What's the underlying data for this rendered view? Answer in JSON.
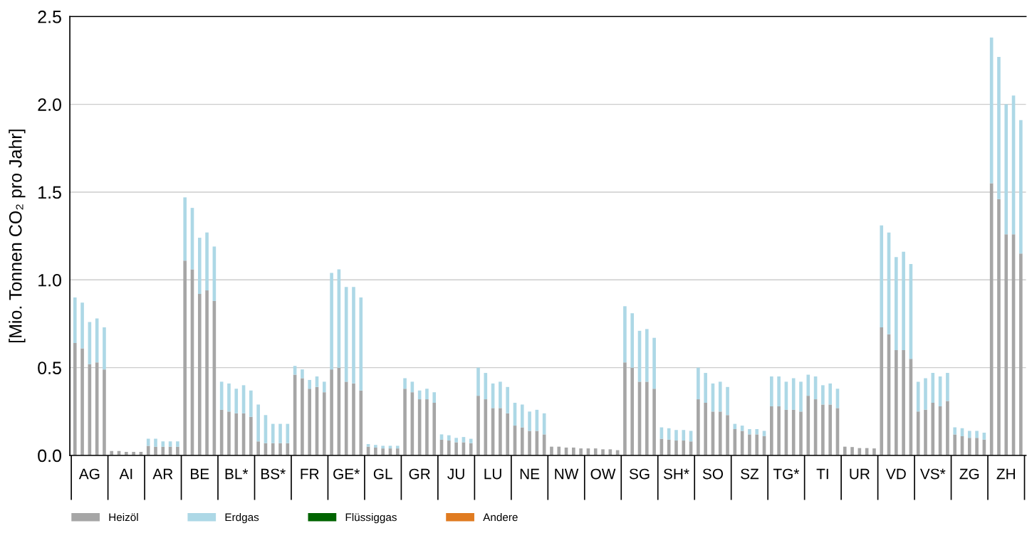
{
  "chart_data": {
    "type": "bar",
    "stacked": true,
    "ylabel": "[Mio. Tonnen CO₂ pro Jahr]",
    "categories": [
      null,
      null,
      "AG",
      null,
      null,
      null,
      null,
      "AI",
      null,
      null,
      null,
      null,
      "AR",
      null,
      null,
      null,
      null,
      "BE",
      null,
      null,
      null,
      null,
      "BL*",
      null,
      null,
      null,
      null,
      "BS*",
      null,
      null,
      null,
      null,
      "FR",
      null,
      null,
      null,
      null,
      "GE*",
      null,
      null,
      null,
      null,
      "GL",
      null,
      null,
      null,
      null,
      "GR",
      null,
      null,
      null,
      null,
      "JU",
      null,
      null,
      null,
      null,
      "LU",
      null,
      null,
      null,
      null,
      "NE",
      null,
      null,
      null,
      null,
      "NW",
      null,
      null,
      null,
      null,
      "OW",
      null,
      null,
      null,
      null,
      "SG",
      null,
      null,
      null,
      null,
      "SH*",
      null,
      null,
      null,
      null,
      "SO",
      null,
      null,
      null,
      null,
      "SZ",
      null,
      null,
      null,
      null,
      "TG*",
      null,
      null,
      null,
      null,
      "TI",
      null,
      null,
      null,
      null,
      "UR",
      null,
      null,
      null,
      null,
      "VD",
      null,
      null,
      null,
      null,
      "VS*",
      null,
      null,
      null,
      null,
      "ZG",
      null,
      null,
      null,
      null,
      "ZH",
      null,
      null
    ],
    "series": [
      {
        "name": "Heizöl",
        "color": "#a6a6a6",
        "values": [
          0.64,
          0.61,
          0.52,
          0.53,
          0.49,
          0.025,
          0.025,
          0.02,
          0.02,
          0.02,
          0.055,
          0.05,
          0.05,
          0.05,
          0.05,
          1.11,
          1.06,
          0.92,
          0.94,
          0.88,
          0.26,
          0.25,
          0.24,
          0.24,
          0.22,
          0.08,
          0.07,
          0.07,
          0.07,
          0.07,
          0.46,
          0.44,
          0.38,
          0.39,
          0.36,
          0.49,
          0.5,
          0.42,
          0.41,
          0.37,
          0.05,
          0.045,
          0.04,
          0.04,
          0.04,
          0.38,
          0.36,
          0.32,
          0.32,
          0.3,
          0.09,
          0.085,
          0.075,
          0.075,
          0.07,
          0.34,
          0.32,
          0.27,
          0.27,
          0.24,
          0.17,
          0.16,
          0.14,
          0.14,
          0.12,
          0.05,
          0.05,
          0.045,
          0.045,
          0.04,
          0.04,
          0.04,
          0.035,
          0.035,
          0.03,
          0.53,
          0.5,
          0.42,
          0.42,
          0.38,
          0.095,
          0.09,
          0.085,
          0.085,
          0.08,
          0.32,
          0.3,
          0.25,
          0.25,
          0.23,
          0.15,
          0.14,
          0.12,
          0.12,
          0.11,
          0.28,
          0.28,
          0.26,
          0.26,
          0.25,
          0.34,
          0.32,
          0.29,
          0.29,
          0.27,
          0.05,
          0.048,
          0.042,
          0.042,
          0.04,
          0.73,
          0.69,
          0.6,
          0.6,
          0.55,
          0.25,
          0.26,
          0.3,
          0.28,
          0.31,
          0.12,
          0.11,
          0.1,
          0.1,
          0.09,
          1.55,
          1.46,
          1.26,
          1.26,
          1.15
        ]
      },
      {
        "name": "Erdgas",
        "color": "#add8e6",
        "values": [
          0.26,
          0.26,
          0.24,
          0.25,
          0.24,
          0,
          0,
          0,
          0,
          0,
          0.04,
          0.045,
          0.03,
          0.03,
          0.03,
          0.36,
          0.35,
          0.32,
          0.33,
          0.31,
          0.16,
          0.16,
          0.14,
          0.16,
          0.15,
          0.21,
          0.16,
          0.11,
          0.11,
          0.11,
          0.05,
          0.05,
          0.05,
          0.06,
          0.06,
          0.55,
          0.56,
          0.54,
          0.55,
          0.53,
          0.015,
          0.015,
          0.015,
          0.015,
          0.015,
          0.06,
          0.06,
          0.05,
          0.06,
          0.06,
          0.03,
          0.03,
          0.025,
          0.03,
          0.025,
          0.16,
          0.15,
          0.14,
          0.15,
          0.15,
          0.13,
          0.13,
          0.11,
          0.12,
          0.12,
          0,
          0,
          0,
          0,
          0,
          0,
          0,
          0,
          0,
          0,
          0.32,
          0.31,
          0.29,
          0.3,
          0.29,
          0.065,
          0.065,
          0.06,
          0.06,
          0.06,
          0.18,
          0.17,
          0.16,
          0.17,
          0.16,
          0.03,
          0.03,
          0.03,
          0.03,
          0.03,
          0.17,
          0.17,
          0.16,
          0.18,
          0.17,
          0.12,
          0.13,
          0.11,
          0.12,
          0.11,
          0,
          0,
          0,
          0,
          0,
          0.58,
          0.58,
          0.53,
          0.56,
          0.54,
          0.17,
          0.18,
          0.17,
          0.17,
          0.16,
          0.04,
          0.045,
          0.04,
          0.04,
          0.04,
          0.83,
          0.81,
          0.74,
          0.79,
          0.76
        ]
      },
      {
        "name": "Flüssiggas",
        "color": "#006400",
        "values": [
          0,
          0,
          0,
          0,
          0,
          0,
          0,
          0,
          0,
          0,
          0,
          0,
          0,
          0,
          0,
          0,
          0,
          0,
          0,
          0,
          0,
          0,
          0,
          0,
          0,
          0,
          0,
          0,
          0,
          0,
          0,
          0,
          0,
          0,
          0,
          0,
          0,
          0,
          0,
          0,
          0,
          0,
          0,
          0,
          0,
          0,
          0,
          0,
          0,
          0,
          0,
          0,
          0,
          0,
          0,
          0,
          0,
          0,
          0,
          0,
          0,
          0,
          0,
          0,
          0,
          0,
          0,
          0,
          0,
          0,
          0,
          0,
          0,
          0,
          0,
          0,
          0,
          0,
          0,
          0,
          0,
          0,
          0,
          0,
          0,
          0,
          0,
          0,
          0,
          0,
          0,
          0,
          0,
          0,
          0,
          0,
          0,
          0,
          0,
          0,
          0,
          0,
          0,
          0,
          0,
          0,
          0,
          0,
          0,
          0,
          0,
          0,
          0,
          0,
          0,
          0,
          0,
          0,
          0,
          0,
          0,
          0,
          0,
          0,
          0,
          0,
          0,
          0,
          0,
          0
        ]
      },
      {
        "name": "Andere",
        "color": "#e07b20",
        "values": [
          0,
          0,
          0,
          0,
          0,
          0,
          0,
          0,
          0,
          0,
          0,
          0,
          0,
          0,
          0,
          0,
          0,
          0,
          0,
          0,
          0,
          0,
          0,
          0,
          0,
          0,
          0,
          0,
          0,
          0,
          0,
          0,
          0,
          0,
          0,
          0,
          0,
          0,
          0,
          0,
          0,
          0,
          0,
          0,
          0,
          0,
          0,
          0,
          0,
          0,
          0,
          0,
          0,
          0,
          0,
          0,
          0,
          0,
          0,
          0,
          0,
          0,
          0,
          0,
          0,
          0,
          0,
          0,
          0,
          0,
          0,
          0,
          0,
          0,
          0,
          0,
          0,
          0,
          0,
          0,
          0,
          0,
          0,
          0,
          0,
          0,
          0,
          0,
          0,
          0,
          0,
          0,
          0,
          0,
          0,
          0,
          0,
          0,
          0,
          0,
          0,
          0,
          0,
          0,
          0,
          0,
          0,
          0,
          0,
          0,
          0,
          0,
          0,
          0,
          0,
          0,
          0,
          0,
          0,
          0,
          0,
          0,
          0,
          0,
          0,
          0,
          0,
          0,
          0,
          0
        ]
      }
    ],
    "ylim": [
      0,
      2.5
    ],
    "yticks": [
      {
        "value": 0,
        "label": "0.0"
      },
      {
        "value": 0.5,
        "label": "0.5"
      },
      {
        "value": 1,
        "label": "1.0"
      },
      {
        "value": 1.5,
        "label": "1.5"
      },
      {
        "value": 2,
        "label": "2.0"
      },
      {
        "value": 2.5,
        "label": "2.5"
      }
    ],
    "grid": "y",
    "legend": "bottom"
  }
}
